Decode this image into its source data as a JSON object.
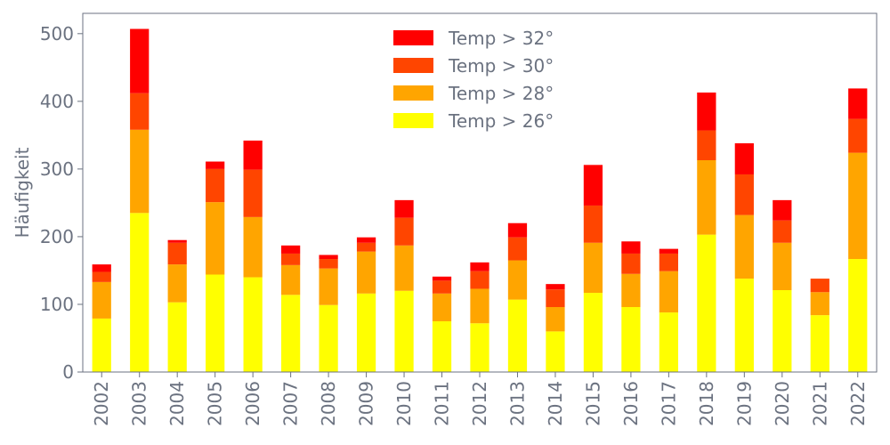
{
  "chart_data": {
    "type": "bar",
    "stacked": true,
    "title": "",
    "xlabel": "",
    "ylabel": "Häufigkeit",
    "ylim": [
      0,
      530
    ],
    "yticks": [
      0,
      100,
      200,
      300,
      400,
      500
    ],
    "grid": false,
    "legend_position": "top-center",
    "categories": [
      "2002",
      "2003",
      "2004",
      "2005",
      "2006",
      "2007",
      "2008",
      "2009",
      "2010",
      "2011",
      "2012",
      "2013",
      "2014",
      "2015",
      "2016",
      "2017",
      "2018",
      "2019",
      "2020",
      "2021",
      "2022"
    ],
    "series": [
      {
        "name": "Temp > 26°",
        "color": "#ffff00",
        "values": [
          79,
          235,
          103,
          144,
          140,
          114,
          99,
          116,
          120,
          75,
          72,
          107,
          60,
          117,
          96,
          88,
          203,
          138,
          121,
          84,
          167
        ]
      },
      {
        "name": "Temp > 28°",
        "color": "#ffa500",
        "values": [
          54,
          123,
          56,
          107,
          89,
          44,
          54,
          62,
          67,
          41,
          51,
          58,
          36,
          74,
          49,
          61,
          110,
          94,
          70,
          34,
          157
        ]
      },
      {
        "name": "Temp > 30°",
        "color": "#ff4500",
        "values": [
          15,
          54,
          32,
          49,
          70,
          17,
          14,
          13,
          41,
          19,
          26,
          34,
          26,
          55,
          30,
          26,
          44,
          60,
          33,
          20,
          50
        ]
      },
      {
        "name": "Temp > 32°",
        "color": "#ff0000",
        "values": [
          11,
          95,
          4,
          11,
          43,
          12,
          6,
          8,
          26,
          6,
          13,
          21,
          8,
          60,
          18,
          7,
          56,
          46,
          30,
          0,
          45
        ]
      }
    ]
  }
}
